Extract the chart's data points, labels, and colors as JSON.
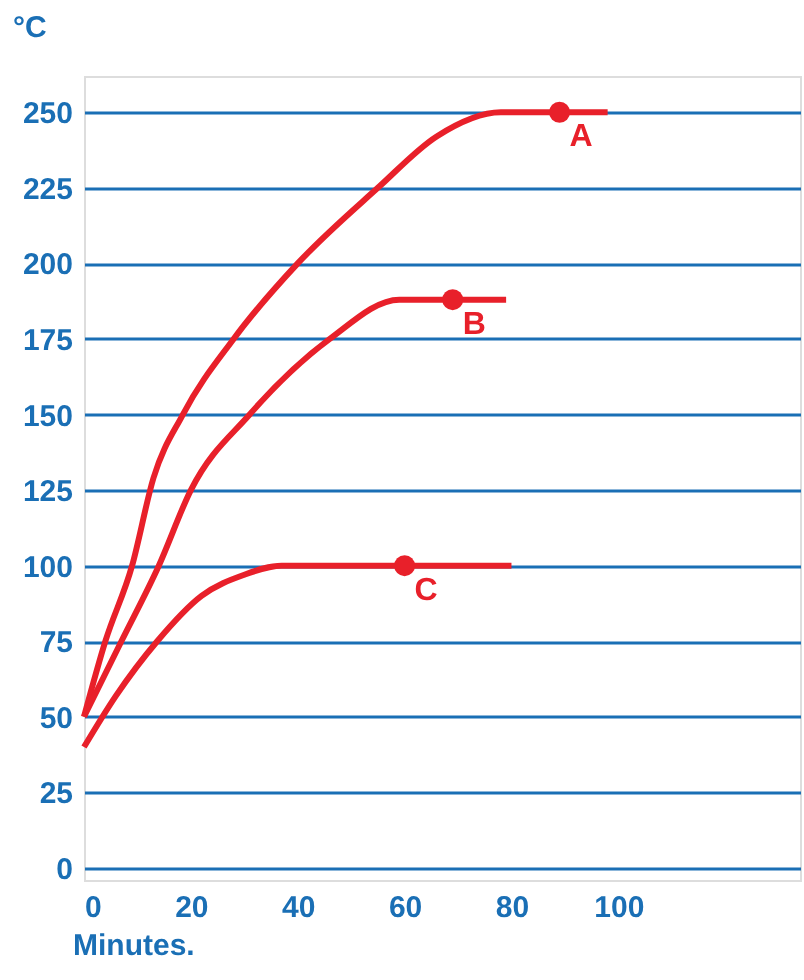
{
  "chart_data": {
    "type": "line",
    "xlabel": "Minutes.",
    "ylabel": "°C",
    "xlim": [
      0,
      134
    ],
    "xticks": [
      0,
      20,
      40,
      60,
      80,
      100
    ],
    "ylim": [
      -4,
      262
    ],
    "yticks": [
      0,
      25,
      50,
      75,
      100,
      125,
      150,
      175,
      200,
      225,
      250
    ],
    "grid": "y",
    "legend": false,
    "line_style": "solid",
    "marker": "none",
    "series": [
      {
        "color": "#e8202a",
        "x": [
          0,
          4,
          9,
          13,
          18.5,
          28,
          40,
          55,
          66,
          78,
          98
        ],
        "values": [
          50,
          75,
          100,
          129,
          150,
          175,
          200,
          225,
          242,
          250,
          250
        ]
      },
      {
        "color": "#e8202a",
        "x": [
          0,
          7,
          14,
          20,
          31,
          46,
          59,
          79
        ],
        "values": [
          50,
          75,
          100,
          125,
          150,
          175,
          188,
          188
        ]
      },
      {
        "color": "#e8202a",
        "x": [
          0,
          6,
          13.7,
          22,
          30,
          37,
          80
        ],
        "values": [
          40,
          57,
          75,
          90,
          97,
          100,
          100
        ]
      }
    ],
    "annotations": [
      {
        "text": "A",
        "x": 89,
        "y": 250
      },
      {
        "text": "B",
        "x": 69,
        "y": 188
      },
      {
        "text": "C",
        "x": 60,
        "y": 100
      }
    ]
  }
}
